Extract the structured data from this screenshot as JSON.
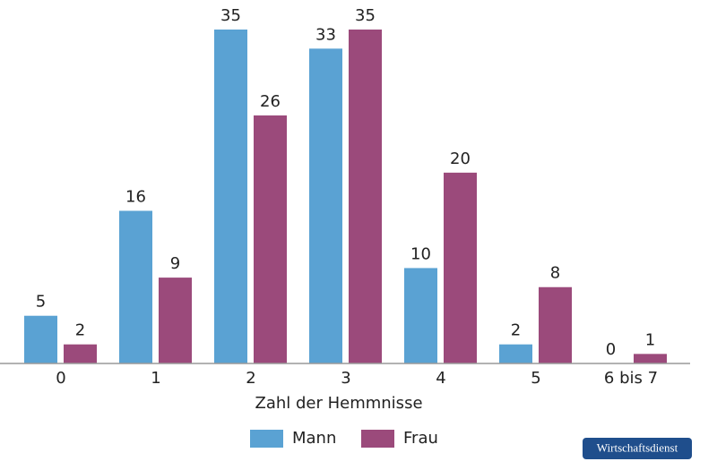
{
  "chart_data": {
    "type": "bar",
    "x_label": "Zahl der Hemmnisse",
    "categories": [
      "0",
      "1",
      "2",
      "3",
      "4",
      "5",
      "6 bis 7"
    ],
    "series": [
      {
        "name": "Mann",
        "color": "#5aa2d3",
        "values": [
          5,
          16,
          35,
          33,
          10,
          2,
          0
        ]
      },
      {
        "name": "Frau",
        "color": "#9b4a7b",
        "values": [
          2,
          9,
          26,
          35,
          20,
          8,
          1
        ]
      }
    ],
    "legend": "bottom",
    "source": "Wirtschaftsdienst"
  }
}
